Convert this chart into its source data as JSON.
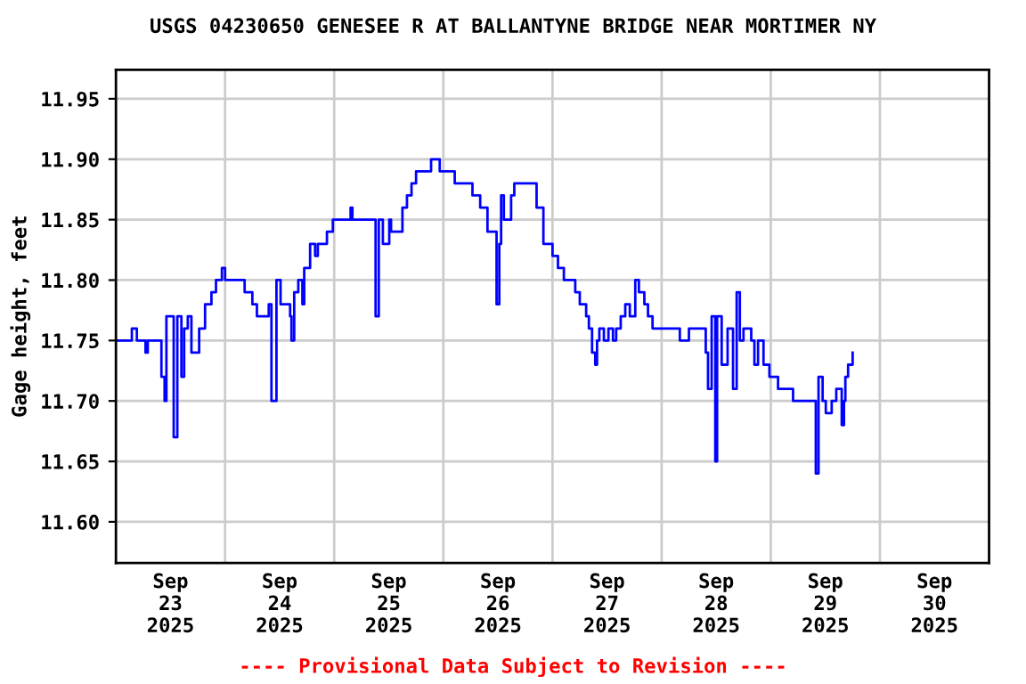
{
  "chart_data": {
    "type": "step",
    "title": "USGS 04230650 GENESEE R AT BALLANTYNE BRIDGE NEAR MORTIMER NY",
    "ylabel": "Gage height, feet",
    "annotations": [
      "---- Provisional Data Subject to Revision ----"
    ],
    "xlim": [
      "2025-09-23T00:00",
      "2025-10-01T00:00"
    ],
    "xticks": [
      {
        "value": "2025-09-23T12:00",
        "label": "Sep\n23\n2025"
      },
      {
        "value": "2025-09-24T00:00",
        "label": null
      },
      {
        "value": "2025-09-24T12:00",
        "label": "Sep\n24\n2025"
      },
      {
        "value": "2025-09-25T00:00",
        "label": null
      },
      {
        "value": "2025-09-25T12:00",
        "label": "Sep\n25\n2025"
      },
      {
        "value": "2025-09-26T00:00",
        "label": null
      },
      {
        "value": "2025-09-26T12:00",
        "label": "Sep\n26\n2025"
      },
      {
        "value": "2025-09-27T00:00",
        "label": null
      },
      {
        "value": "2025-09-27T12:00",
        "label": "Sep\n27\n2025"
      },
      {
        "value": "2025-09-28T00:00",
        "label": null
      },
      {
        "value": "2025-09-28T12:00",
        "label": "Sep\n28\n2025"
      },
      {
        "value": "2025-09-29T00:00",
        "label": null
      },
      {
        "value": "2025-09-29T12:00",
        "label": "Sep\n29\n2025"
      },
      {
        "value": "2025-09-30T00:00",
        "label": null
      },
      {
        "value": "2025-09-30T12:00",
        "label": "Sep\n30\n2025"
      }
    ],
    "ylim": [
      11.566,
      11.974
    ],
    "yticks": [
      {
        "value": 11.6,
        "label": "11.60"
      },
      {
        "value": 11.65,
        "label": "11.65"
      },
      {
        "value": 11.7,
        "label": "11.70"
      },
      {
        "value": 11.75,
        "label": "11.75"
      },
      {
        "value": 11.8,
        "label": "11.80"
      },
      {
        "value": 11.85,
        "label": "11.85"
      },
      {
        "value": 11.9,
        "label": "11.90"
      },
      {
        "value": 11.95,
        "label": "11.95"
      }
    ],
    "grid": true,
    "series": [
      {
        "color": "#0000ff",
        "x": [
          "2025-09-23T00:00",
          "2025-09-23T03:30",
          "2025-09-23T04:36",
          "2025-09-23T06:30",
          "2025-09-23T07:00",
          "2025-09-23T10:00",
          "2025-09-23T10:42",
          "2025-09-23T11:06",
          "2025-09-23T12:42",
          "2025-09-23T13:30",
          "2025-09-23T14:24",
          "2025-09-23T15:00",
          "2025-09-23T15:48",
          "2025-09-23T16:36",
          "2025-09-23T18:18",
          "2025-09-23T19:36",
          "2025-09-23T21:00",
          "2025-09-23T22:00",
          "2025-09-23T23:18",
          "2025-09-24T00:00",
          "2025-09-24T03:48",
          "2025-09-24T04:18",
          "2025-09-24T06:00",
          "2025-09-24T07:00",
          "2025-09-24T09:36",
          "2025-09-24T10:12",
          "2025-09-24T11:18",
          "2025-09-24T12:12",
          "2025-09-24T14:18",
          "2025-09-24T14:36",
          "2025-09-24T15:12",
          "2025-09-24T16:06",
          "2025-09-24T17:00",
          "2025-09-24T17:24",
          "2025-09-24T18:42",
          "2025-09-24T19:48",
          "2025-09-24T20:24",
          "2025-09-24T22:24",
          "2025-09-24T23:42",
          "2025-09-25T03:36",
          "2025-09-25T04:00",
          "2025-09-25T08:54",
          "2025-09-25T09:06",
          "2025-09-25T09:48",
          "2025-09-25T10:42",
          "2025-09-25T12:06",
          "2025-09-25T12:30",
          "2025-09-25T14:24",
          "2025-09-25T15:00",
          "2025-09-25T16:00",
          "2025-09-25T17:00",
          "2025-09-25T18:00",
          "2025-09-25T21:18",
          "2025-09-25T23:12",
          "2025-09-26T02:30",
          "2025-09-26T06:00",
          "2025-09-26T06:24",
          "2025-09-26T08:06",
          "2025-09-26T09:42",
          "2025-09-26T11:42",
          "2025-09-26T12:18",
          "2025-09-26T12:42",
          "2025-09-26T13:18",
          "2025-09-26T14:54",
          "2025-09-26T15:36",
          "2025-09-26T18:48",
          "2025-09-26T20:30",
          "2025-09-26T22:00",
          "2025-09-27T00:00",
          "2025-09-27T01:12",
          "2025-09-27T02:30",
          "2025-09-27T05:00",
          "2025-09-27T06:00",
          "2025-09-27T07:24",
          "2025-09-27T08:00",
          "2025-09-27T08:42",
          "2025-09-27T09:24",
          "2025-09-27T09:48",
          "2025-09-27T10:18",
          "2025-09-27T11:18",
          "2025-09-27T12:18",
          "2025-09-27T13:18",
          "2025-09-27T14:00",
          "2025-09-27T15:00",
          "2025-09-27T16:00",
          "2025-09-27T17:00",
          "2025-09-27T18:12",
          "2025-09-27T19:00",
          "2025-09-27T20:12",
          "2025-09-27T21:00",
          "2025-09-27T22:00",
          "2025-09-28T04:00",
          "2025-09-28T06:00",
          "2025-09-28T08:36",
          "2025-09-28T09:42",
          "2025-09-28T10:12",
          "2025-09-28T11:00",
          "2025-09-28T11:48",
          "2025-09-28T12:12",
          "2025-09-28T13:12",
          "2025-09-28T14:30",
          "2025-09-28T15:42",
          "2025-09-28T16:30",
          "2025-09-28T17:12",
          "2025-09-28T18:00",
          "2025-09-28T19:42",
          "2025-09-28T20:24",
          "2025-09-28T21:12",
          "2025-09-28T22:24",
          "2025-09-28T23:42",
          "2025-09-29T01:36",
          "2025-09-29T04:54",
          "2025-09-29T09:30",
          "2025-09-29T09:54",
          "2025-09-29T10:30",
          "2025-09-29T11:24",
          "2025-09-29T12:06",
          "2025-09-29T13:24",
          "2025-09-29T14:24",
          "2025-09-29T15:36",
          "2025-09-29T16:06",
          "2025-09-29T16:24",
          "2025-09-29T17:00",
          "2025-09-29T18:00"
        ],
        "values": [
          11.75,
          11.76,
          11.75,
          11.74,
          11.75,
          11.72,
          11.7,
          11.77,
          11.67,
          11.77,
          11.72,
          11.76,
          11.77,
          11.74,
          11.76,
          11.78,
          11.79,
          11.8,
          11.81,
          11.8,
          11.8,
          11.79,
          11.78,
          11.77,
          11.78,
          11.7,
          11.8,
          11.78,
          11.77,
          11.75,
          11.79,
          11.8,
          11.78,
          11.81,
          11.83,
          11.82,
          11.83,
          11.84,
          11.85,
          11.86,
          11.85,
          11.85,
          11.77,
          11.85,
          11.83,
          11.85,
          11.84,
          11.84,
          11.86,
          11.87,
          11.88,
          11.89,
          11.9,
          11.89,
          11.88,
          11.88,
          11.87,
          11.86,
          11.84,
          11.78,
          11.83,
          11.87,
          11.85,
          11.87,
          11.88,
          11.88,
          11.86,
          11.83,
          11.82,
          11.81,
          11.8,
          11.79,
          11.78,
          11.77,
          11.76,
          11.74,
          11.73,
          11.75,
          11.76,
          11.75,
          11.76,
          11.75,
          11.76,
          11.77,
          11.78,
          11.77,
          11.8,
          11.79,
          11.78,
          11.77,
          11.76,
          11.75,
          11.76,
          11.76,
          11.74,
          11.71,
          11.77,
          11.65,
          11.77,
          11.73,
          11.76,
          11.71,
          11.79,
          11.75,
          11.76,
          11.75,
          11.73,
          11.75,
          11.73,
          11.72,
          11.71,
          11.7,
          11.7,
          11.64,
          11.72,
          11.7,
          11.69,
          11.7,
          11.71,
          11.68,
          11.7,
          11.72,
          11.73,
          11.74
        ]
      }
    ]
  }
}
